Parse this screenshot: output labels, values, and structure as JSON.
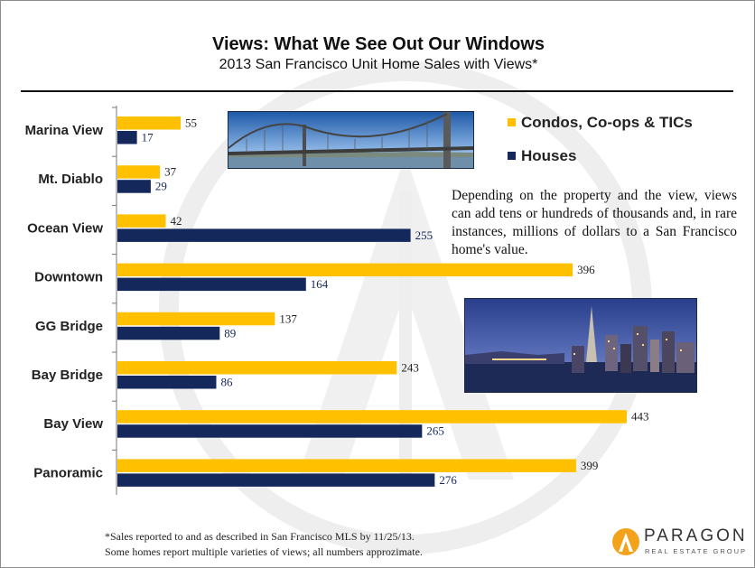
{
  "header": {
    "title": "Views: What We See Out Our Windows",
    "subtitle": "2013 San Francisco Unit Home Sales with Views*"
  },
  "legend": {
    "condos_label": "Condos, Co-ops & TICs",
    "houses_label": "Houses"
  },
  "note": "Depending on the property and the view, views can add tens or hundreds of thousands and, in rare instances, millions of dollars to a San Francisco home's value.",
  "footnote": {
    "line1": "*Sales reported to and as described in San Francisco MLS by 11/25/13.",
    "line2": "Some homes report multiple varieties of views; all numbers approzimate."
  },
  "logo": {
    "name": "PARAGON",
    "tagline": "REAL ESTATE GROUP"
  },
  "colors": {
    "condos": "#FFC000",
    "houses": "#14285C"
  },
  "chart_data": {
    "type": "bar",
    "orientation": "horizontal",
    "title": "Views: What We See Out Our Windows",
    "subtitle": "2013 San Francisco Unit Home Sales with Views*",
    "categories": [
      "Marina View",
      "Mt. Diablo",
      "Ocean View",
      "Downtown",
      "GG Bridge",
      "Bay Bridge",
      "Bay View",
      "Panoramic"
    ],
    "series": [
      {
        "name": "Condos, Co-ops & TICs",
        "values": [
          55,
          37,
          42,
          396,
          137,
          243,
          443,
          399
        ]
      },
      {
        "name": "Houses",
        "values": [
          17,
          29,
          255,
          164,
          89,
          86,
          265,
          276
        ]
      }
    ],
    "xlim": [
      0,
      500
    ],
    "data_labels": true,
    "grid": false,
    "legend_position": "top-right"
  }
}
